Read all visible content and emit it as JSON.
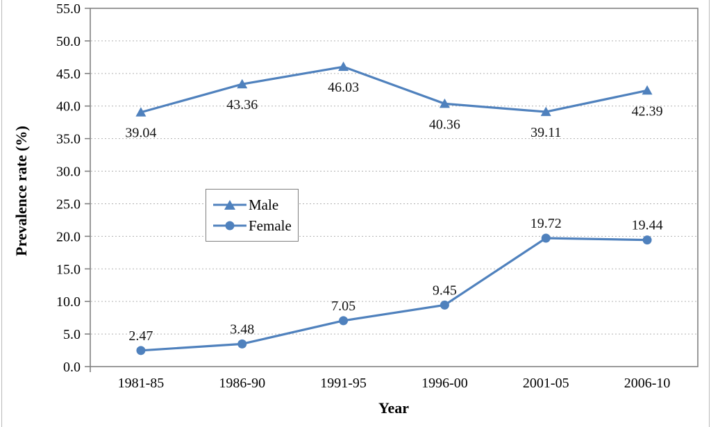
{
  "chart_data": {
    "type": "line",
    "title": "",
    "xlabel": "Year",
    "ylabel": "Prevalence rate (%)",
    "categories": [
      "1981-85",
      "1986-90",
      "1991-95",
      "1996-00",
      "2001-05",
      "2006-10"
    ],
    "series": [
      {
        "name": "Male",
        "marker": "triangle",
        "color": "#4f81bd",
        "values": [
          39.04,
          43.36,
          46.03,
          40.36,
          39.11,
          42.39
        ],
        "data_labels": [
          "39.04",
          "43.36",
          "46.03",
          "40.36",
          "39.11",
          "42.39"
        ],
        "label_position": "below"
      },
      {
        "name": "Female",
        "marker": "circle",
        "color": "#4f81bd",
        "values": [
          2.47,
          3.48,
          7.05,
          9.45,
          19.72,
          19.44
        ],
        "data_labels": [
          "2.47",
          "3.48",
          "7.05",
          "9.45",
          "19.72",
          "19.44"
        ],
        "label_position": "above"
      }
    ],
    "ylim": [
      0,
      55
    ],
    "ytick_step": 5,
    "ytick_labels": [
      "0.0",
      "5.0",
      "10.0",
      "15.0",
      "20.0",
      "25.0",
      "30.0",
      "35.0",
      "40.0",
      "45.0",
      "50.0",
      "55.0"
    ],
    "grid": "horizontal-dotted",
    "legend_position": "inside-left-middle",
    "legend_labels": [
      "Male",
      "Female"
    ],
    "style": {
      "line_color": "#4f81bd",
      "axis_color": "#808080",
      "grid_color": "#b0b0b0",
      "text_color": "#000000",
      "legend_border": "#7f7f7f"
    }
  }
}
